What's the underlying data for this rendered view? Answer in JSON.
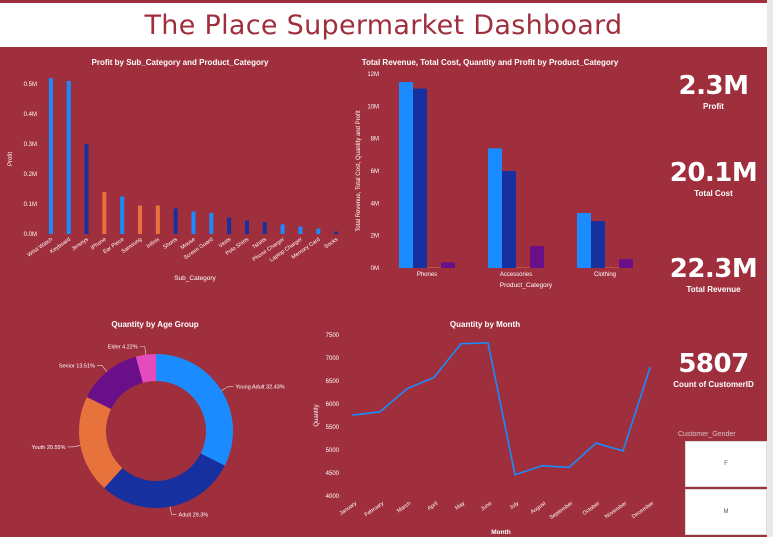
{
  "title": "The Place Supermarket Dashboard",
  "colors": {
    "background": "#9f2f3c",
    "blue_light": "#1a8cff",
    "blue_dark": "#1630a0",
    "orange": "#e8723b",
    "purple": "#6a0f8a",
    "pink": "#e44bbd"
  },
  "profit_chart": {
    "title": "Profit by Sub_Category and Product_Category",
    "chart_data": {
      "type": "bar",
      "title": "Profit by Sub_Category and Product_Category",
      "xlabel": "Sub_Category",
      "ylabel": "Profit",
      "ylim": [
        0,
        0.5
      ],
      "y_ticks": [
        "0.0M",
        "0.1M",
        "0.2M",
        "0.3M",
        "0.4M",
        "0.5M"
      ],
      "categories": [
        "Wrist Watch",
        "Keyboard",
        "Jerseys",
        "iPhone",
        "Ear Piece",
        "Samsung",
        "Infinix",
        "Shorts",
        "Mouse",
        "Screen Guard",
        "Vests",
        "Polo Shirts",
        "Tshirts",
        "Phone Charger",
        "Laptop Charger",
        "Memory Card",
        "Socks"
      ],
      "values": [
        0.52,
        0.51,
        0.3,
        0.14,
        0.125,
        0.095,
        0.095,
        0.085,
        0.075,
        0.07,
        0.055,
        0.045,
        0.04,
        0.032,
        0.025,
        0.018,
        0.008
      ],
      "bar_colors": [
        "#1a8cff",
        "#1a8cff",
        "#1630a0",
        "#e8723b",
        "#1a8cff",
        "#e8723b",
        "#e8723b",
        "#1630a0",
        "#1a8cff",
        "#1a8cff",
        "#1630a0",
        "#1630a0",
        "#1630a0",
        "#1a8cff",
        "#1a8cff",
        "#1a8cff",
        "#1630a0"
      ]
    }
  },
  "totals_chart": {
    "title": "Total Revenue, Total Cost, Quantity and Profit by Product_Category",
    "chart_data": {
      "type": "bar",
      "title": "Total Revenue, Total Cost, Quantity and Profit by Product_Category",
      "xlabel": "Product_Category",
      "ylabel": "Total Revenue, Total Cost, Quantity and Profit",
      "ylim": [
        0,
        12
      ],
      "y_ticks": [
        "0M",
        "2M",
        "4M",
        "6M",
        "8M",
        "10M",
        "12M"
      ],
      "categories": [
        "Phones",
        "Accessories",
        "Clothing"
      ],
      "series": [
        {
          "values": [
            11.5,
            7.4,
            3.4
          ],
          "color": "#1a8cff"
        },
        {
          "values": [
            11.1,
            6.0,
            2.9
          ],
          "color": "#1630a0"
        },
        {
          "values": [
            0.02,
            0.02,
            0.02
          ],
          "color": "#e8723b"
        },
        {
          "values": [
            0.35,
            1.35,
            0.55
          ],
          "color": "#6a0f8a"
        }
      ]
    }
  },
  "kpis": [
    {
      "value": "2.3M",
      "label": "Profit"
    },
    {
      "value": "20.1M",
      "label": "Total Cost"
    },
    {
      "value": "22.3M",
      "label": "Total Revenue"
    },
    {
      "value": "5807",
      "label": "Count of CustomerID"
    }
  ],
  "age_chart": {
    "title": "Quantity by Age Group",
    "chart_data": {
      "type": "pie",
      "title": "Quantity by Age Group",
      "slices": [
        {
          "label": "Young Adult 32.43%",
          "value": 32.43,
          "color": "#1a8cff"
        },
        {
          "label": "Adult 29.3%",
          "value": 29.3,
          "color": "#1630a0"
        },
        {
          "label": "Youth 20.55%",
          "value": 20.55,
          "color": "#e8723b"
        },
        {
          "label": "Senior 13.51%",
          "value": 13.51,
          "color": "#6a0f8a"
        },
        {
          "label": "Elder 4.22%",
          "value": 4.22,
          "color": "#e44bbd"
        }
      ]
    }
  },
  "month_chart": {
    "title": "Quantity by Month",
    "chart_data": {
      "type": "line",
      "title": "Quantity by Month",
      "xlabel": "Month",
      "ylabel": "Quantity",
      "ylim": [
        4000,
        7500
      ],
      "y_ticks": [
        "4000",
        "4500",
        "5000",
        "5500",
        "6000",
        "6500",
        "7000",
        "7500"
      ],
      "categories": [
        "January",
        "February",
        "March",
        "April",
        "May",
        "June",
        "July",
        "August",
        "September",
        "October",
        "November",
        "December"
      ],
      "values": [
        5760,
        5830,
        6330,
        6580,
        7310,
        7330,
        4460,
        4660,
        4620,
        5150,
        4980,
        6790
      ]
    }
  },
  "slicer": {
    "title": "Customer_Gender",
    "options": [
      "F",
      "M"
    ]
  }
}
